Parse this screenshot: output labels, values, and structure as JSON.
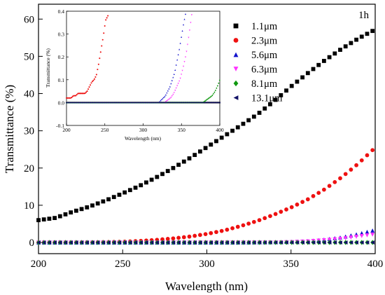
{
  "chart_data": [
    {
      "type": "scatter",
      "title": "",
      "corner_label": "1h",
      "xlabel": "Wavelength (nm)",
      "ylabel": "Transmittance (%)",
      "xlim": [
        200,
        400
      ],
      "ylim": [
        -3,
        64
      ],
      "xticks": [
        "200",
        "250",
        "300",
        "350",
        "400"
      ],
      "yticks": [
        "0",
        "10",
        "20",
        "30",
        "40",
        "50",
        "60"
      ],
      "grid": false,
      "legend_position": "top-right",
      "series": [
        {
          "name": "1.1μm",
          "marker": "square",
          "color": "#000000",
          "x": [
            200,
            210,
            220,
            230,
            240,
            250,
            260,
            270,
            280,
            290,
            300,
            310,
            320,
            330,
            340,
            350,
            360,
            370,
            380,
            390,
            400
          ],
          "values": [
            6,
            6.6,
            8.2,
            9.6,
            11.3,
            13.2,
            15.2,
            17.5,
            20,
            22.7,
            25.6,
            28.5,
            31.4,
            34.4,
            38,
            41.9,
            45.5,
            48.9,
            52,
            54.8,
            57.2
          ]
        },
        {
          "name": "2.3μm",
          "marker": "circle",
          "color": "#ee1111",
          "x": [
            200,
            220,
            240,
            250,
            260,
            270,
            280,
            290,
            300,
            310,
            320,
            330,
            340,
            350,
            360,
            370,
            380,
            390,
            400
          ],
          "values": [
            0,
            0,
            0.1,
            0.2,
            0.4,
            0.7,
            1.1,
            1.6,
            2.3,
            3.2,
            4.4,
            5.8,
            7.5,
            9.4,
            11.6,
            14.3,
            17.5,
            21.2,
            25.5
          ]
        },
        {
          "name": "5.6μm",
          "marker": "triangle-up",
          "color": "#1111cc",
          "x": [
            200,
            250,
            300,
            320,
            340,
            350,
            360,
            370,
            380,
            390,
            400
          ],
          "values": [
            0,
            0,
            0,
            0,
            0.1,
            0.2,
            0.4,
            0.8,
            1.4,
            2.3,
            3.4
          ]
        },
        {
          "name": "6.3μm",
          "marker": "triangle-down",
          "color": "#ff33ff",
          "x": [
            200,
            250,
            300,
            320,
            340,
            350,
            360,
            370,
            380,
            390,
            400
          ],
          "values": [
            0,
            0,
            0,
            0,
            0,
            0.1,
            0.3,
            0.6,
            1.0,
            1.6,
            2.2
          ]
        },
        {
          "name": "8.1μm",
          "marker": "diamond",
          "color": "#119911",
          "x": [
            200,
            250,
            300,
            350,
            400
          ],
          "values": [
            0,
            0,
            0,
            0,
            0
          ]
        },
        {
          "name": "13.1μm",
          "marker": "triangle-left",
          "color": "#111166",
          "x": [
            200,
            250,
            300,
            350,
            400
          ],
          "values": [
            0,
            0,
            0,
            0,
            0
          ]
        }
      ]
    },
    {
      "type": "scatter",
      "title": "",
      "xlabel": "Wavelength (nm)",
      "ylabel": "Transmittance (%)",
      "xlim": [
        200,
        400
      ],
      "ylim": [
        -0.1,
        0.4
      ],
      "xticks": [
        "200",
        "250",
        "300",
        "350",
        "400"
      ],
      "yticks": [
        "-0.1",
        "0.0",
        "0.1",
        "0.2",
        "0.3",
        "0.4"
      ],
      "grid": false,
      "series": [
        {
          "marker": "square",
          "color": "#000000",
          "x": [
            200,
            250,
            300,
            350,
            400
          ],
          "values": [
            0,
            0,
            0,
            0,
            0
          ]
        },
        {
          "marker": "circle",
          "color": "#ee1111",
          "x": [
            200,
            203,
            206,
            209,
            212,
            215,
            218,
            221,
            224,
            227,
            230,
            233,
            236,
            239,
            242,
            245,
            248,
            251,
            254
          ],
          "values": [
            0.02,
            0.02,
            0.02,
            0.03,
            0.03,
            0.04,
            0.04,
            0.04,
            0.04,
            0.05,
            0.07,
            0.09,
            0.1,
            0.12,
            0.17,
            0.23,
            0.29,
            0.36,
            0.38
          ]
        },
        {
          "marker": "triangle-up",
          "color": "#1111cc",
          "x": [
            320,
            323,
            326,
            329,
            332,
            335,
            338,
            341,
            344,
            347,
            350,
            353,
            356
          ],
          "values": [
            0,
            0.01,
            0.02,
            0.03,
            0.05,
            0.07,
            0.1,
            0.13,
            0.18,
            0.23,
            0.29,
            0.35,
            0.4
          ]
        },
        {
          "marker": "triangle-down",
          "color": "#ff33ff",
          "x": [
            324,
            328,
            332,
            336,
            340,
            344,
            348,
            352,
            356,
            360,
            364
          ],
          "values": [
            0,
            0,
            0.01,
            0.02,
            0.04,
            0.07,
            0.1,
            0.15,
            0.21,
            0.3,
            0.4
          ]
        },
        {
          "marker": "diamond",
          "color": "#119911",
          "x": [
            370,
            374,
            378,
            382,
            386,
            390,
            394,
            398,
            400
          ],
          "values": [
            0,
            0,
            0,
            0.01,
            0.02,
            0.03,
            0.05,
            0.08,
            0.1
          ]
        },
        {
          "marker": "triangle-left",
          "color": "#111166",
          "x": [
            200,
            250,
            300,
            350,
            400
          ],
          "values": [
            0,
            0,
            0,
            0,
            0
          ]
        }
      ]
    }
  ]
}
